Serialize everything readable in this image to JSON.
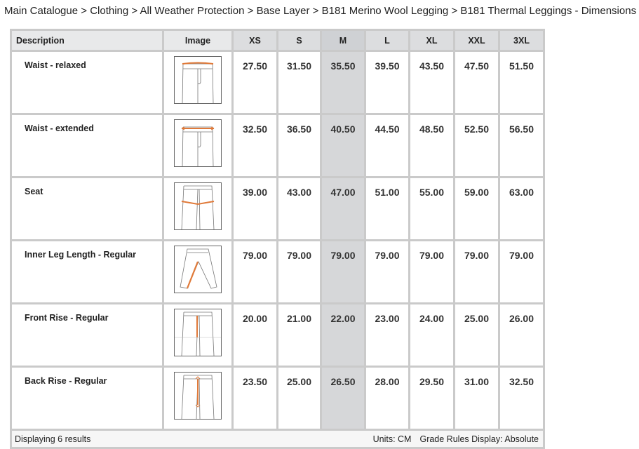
{
  "breadcrumb": [
    "Main Catalogue",
    "Clothing",
    "All Weather Protection",
    "Base Layer",
    "B181 Merino Wool Legging",
    "B181 Thermal Leggings - Dimensions"
  ],
  "separator": " > ",
  "columns": {
    "description": "Description",
    "image": "Image",
    "sizes": [
      "XS",
      "S",
      "M",
      "L",
      "XL",
      "XXL",
      "3XL"
    ]
  },
  "selected_size": "M",
  "accent_color": "#e07a3a",
  "rows": [
    {
      "description": "Waist - relaxed",
      "icon": "pants-waist-relaxed-icon",
      "values": [
        "27.50",
        "31.50",
        "35.50",
        "39.50",
        "43.50",
        "47.50",
        "51.50"
      ]
    },
    {
      "description": "Waist - extended",
      "icon": "pants-waist-extended-icon",
      "values": [
        "32.50",
        "36.50",
        "40.50",
        "44.50",
        "48.50",
        "52.50",
        "56.50"
      ]
    },
    {
      "description": "Seat",
      "icon": "pants-seat-icon",
      "values": [
        "39.00",
        "43.00",
        "47.00",
        "51.00",
        "55.00",
        "59.00",
        "63.00"
      ]
    },
    {
      "description": "Inner Leg Length - Regular",
      "icon": "pants-inner-leg-icon",
      "values": [
        "79.00",
        "79.00",
        "79.00",
        "79.00",
        "79.00",
        "79.00",
        "79.00"
      ]
    },
    {
      "description": "Front Rise - Regular",
      "icon": "pants-front-rise-icon",
      "values": [
        "20.00",
        "21.00",
        "22.00",
        "23.00",
        "24.00",
        "25.00",
        "26.00"
      ]
    },
    {
      "description": "Back Rise - Regular",
      "icon": "pants-back-rise-icon",
      "values": [
        "23.50",
        "25.00",
        "26.50",
        "28.00",
        "29.50",
        "31.00",
        "32.50"
      ]
    }
  ],
  "footer": {
    "results": "Displaying 6 results",
    "units": "Units: CM",
    "grade_rules": "Grade Rules Display: Absolute"
  }
}
